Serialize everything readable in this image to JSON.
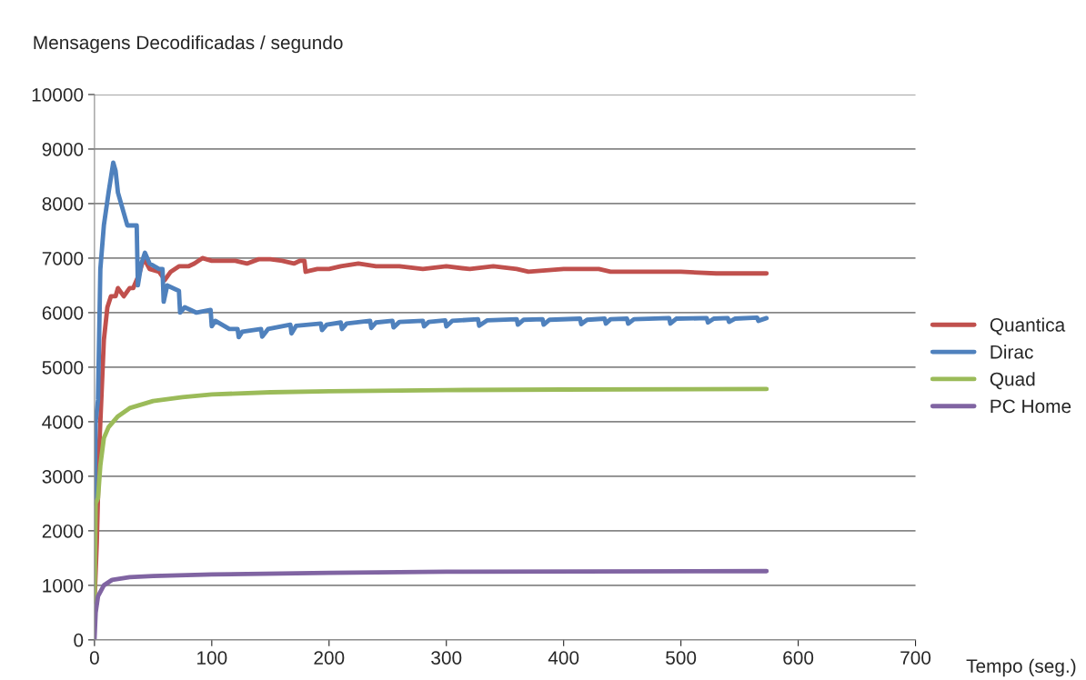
{
  "chart_data": {
    "type": "line",
    "ylabel": "Mensagens Decodificadas / segundo",
    "xlabel": "Tempo (seg.)",
    "xlim": [
      0,
      700
    ],
    "xticks": [
      0,
      100,
      200,
      300,
      400,
      500,
      600,
      700
    ],
    "ylim": [
      0,
      10000
    ],
    "yticks": [
      0,
      1000,
      2000,
      3000,
      4000,
      5000,
      6000,
      7000,
      8000,
      9000,
      10000
    ],
    "grid": "y",
    "legend": "right",
    "marker": "none",
    "line_style": "solid",
    "series": [
      {
        "name": "Quantica",
        "color": "#c0504d",
        "x": [
          0,
          2,
          4,
          6,
          8,
          11,
          14,
          18,
          20,
          25,
          30,
          33,
          38,
          42,
          47,
          55,
          60,
          65,
          72,
          80,
          85,
          92,
          100,
          110,
          120,
          130,
          140,
          150,
          160,
          170,
          175,
          179,
          180,
          190,
          200,
          210,
          225,
          240,
          260,
          280,
          300,
          320,
          340,
          360,
          370,
          400,
          430,
          440,
          480,
          500,
          530,
          573
        ],
        "values": [
          700,
          1800,
          3500,
          4500,
          5500,
          6100,
          6300,
          6300,
          6450,
          6300,
          6450,
          6450,
          6700,
          7000,
          6800,
          6750,
          6600,
          6750,
          6850,
          6850,
          6900,
          7000,
          6950,
          6950,
          6950,
          6900,
          6980,
          6980,
          6950,
          6900,
          6950,
          6950,
          6750,
          6800,
          6800,
          6850,
          6900,
          6850,
          6850,
          6800,
          6850,
          6800,
          6850,
          6800,
          6750,
          6800,
          6800,
          6750,
          6750,
          6750,
          6720,
          6720
        ]
      },
      {
        "name": "Dirac",
        "color": "#4f81bd",
        "x": [
          0,
          1,
          3,
          5,
          8,
          12,
          16,
          18,
          20,
          24,
          28,
          36,
          37,
          40,
          43,
          47,
          55,
          58,
          59,
          62,
          72,
          73,
          77,
          87,
          99,
          100,
          103,
          115,
          122,
          123,
          126,
          142,
          143,
          148,
          167,
          168,
          172,
          193,
          194,
          198,
          210,
          211,
          215,
          235,
          236,
          240,
          254,
          255,
          260,
          280,
          281,
          285,
          299,
          300,
          305,
          327,
          328,
          335,
          360,
          361,
          366,
          382,
          383,
          388,
          414,
          415,
          420,
          435,
          436,
          440,
          454,
          455,
          460,
          490,
          491,
          496,
          522,
          523,
          528,
          540,
          541,
          546,
          565,
          566,
          573
        ],
        "values": [
          2500,
          4000,
          4400,
          6800,
          7600,
          8200,
          8750,
          8600,
          8200,
          7900,
          7600,
          7600,
          6500,
          6900,
          7100,
          6900,
          6800,
          6800,
          6200,
          6500,
          6400,
          6000,
          6100,
          6000,
          6050,
          5750,
          5850,
          5700,
          5700,
          5550,
          5650,
          5700,
          5560,
          5700,
          5780,
          5620,
          5760,
          5800,
          5680,
          5780,
          5820,
          5700,
          5800,
          5850,
          5720,
          5820,
          5850,
          5730,
          5830,
          5850,
          5750,
          5830,
          5860,
          5750,
          5850,
          5880,
          5760,
          5860,
          5880,
          5780,
          5870,
          5880,
          5780,
          5870,
          5890,
          5790,
          5870,
          5890,
          5800,
          5880,
          5890,
          5800,
          5880,
          5900,
          5800,
          5890,
          5900,
          5820,
          5890,
          5900,
          5830,
          5890,
          5910,
          5850,
          5900
        ]
      },
      {
        "name": "Quad",
        "color": "#9bbb59",
        "x": [
          0,
          1,
          3,
          5,
          8,
          12,
          20,
          30,
          50,
          75,
          100,
          150,
          200,
          300,
          400,
          573
        ],
        "values": [
          700,
          2500,
          2600,
          3200,
          3700,
          3900,
          4100,
          4250,
          4380,
          4450,
          4500,
          4540,
          4560,
          4580,
          4590,
          4600
        ]
      },
      {
        "name": "PC Home",
        "color": "#8064a2",
        "x": [
          0,
          1,
          3,
          8,
          15,
          30,
          50,
          100,
          200,
          300,
          573
        ],
        "values": [
          0,
          500,
          800,
          1000,
          1100,
          1150,
          1170,
          1200,
          1230,
          1250,
          1260
        ]
      }
    ]
  }
}
